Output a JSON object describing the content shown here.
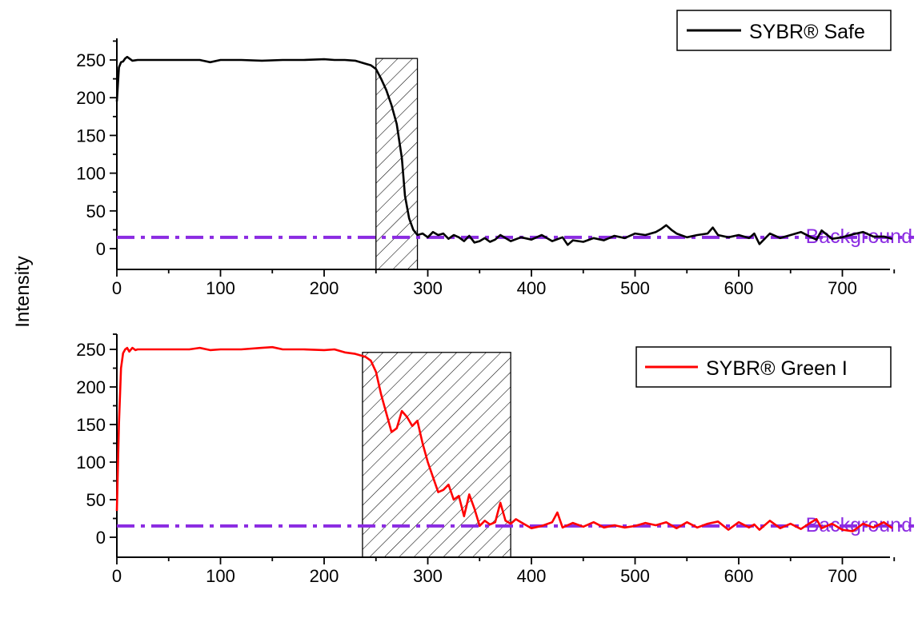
{
  "ylabel": "Intensity",
  "chart_data": [
    {
      "type": "line",
      "series": [
        {
          "name": "SYBR® Safe",
          "color": "#000000",
          "x": [
            0,
            2,
            4,
            6,
            8,
            10,
            12,
            15,
            20,
            30,
            40,
            60,
            80,
            90,
            100,
            120,
            140,
            160,
            180,
            200,
            210,
            220,
            230,
            240,
            245,
            250,
            255,
            260,
            265,
            270,
            275,
            278,
            282,
            286,
            290,
            295,
            300,
            305,
            310,
            315,
            320,
            325,
            330,
            335,
            340,
            345,
            350,
            355,
            360,
            365,
            370,
            375,
            380,
            390,
            400,
            410,
            420,
            430,
            435,
            440,
            450,
            460,
            470,
            480,
            490,
            500,
            510,
            520,
            525,
            530,
            535,
            540,
            550,
            560,
            570,
            575,
            580,
            590,
            600,
            610,
            615,
            620,
            630,
            640,
            650,
            660,
            670,
            675,
            680,
            690,
            700,
            710,
            720,
            730,
            740,
            748
          ],
          "y": [
            195,
            240,
            247,
            248,
            252,
            254,
            252,
            249,
            250,
            250,
            250,
            250,
            250,
            247,
            250,
            250,
            249,
            250,
            250,
            251,
            250,
            250,
            249,
            245,
            243,
            238,
            225,
            210,
            190,
            165,
            120,
            70,
            40,
            25,
            18,
            20,
            15,
            22,
            18,
            20,
            13,
            18,
            15,
            10,
            17,
            8,
            10,
            14,
            9,
            12,
            18,
            14,
            10,
            15,
            12,
            18,
            10,
            15,
            5,
            11,
            9,
            14,
            11,
            17,
            14,
            20,
            18,
            22,
            26,
            31,
            25,
            20,
            15,
            18,
            20,
            28,
            18,
            15,
            18,
            14,
            20,
            6,
            20,
            14,
            18,
            22,
            15,
            12,
            24,
            13,
            15,
            19,
            22,
            16,
            16,
            13
          ]
        }
      ],
      "background_level": 15,
      "background_label": "Background",
      "background_color": "#8B2BE2",
      "shaded_region": [
        250,
        290
      ],
      "shaded_top": 252,
      "xlim": [
        0,
        750
      ],
      "ylim": [
        -25,
        275
      ],
      "xticks": [
        0,
        100,
        200,
        300,
        400,
        500,
        600,
        700
      ],
      "yticks": [
        0,
        50,
        100,
        150,
        200,
        250
      ],
      "legend_position": "top-right"
    },
    {
      "type": "line",
      "series": [
        {
          "name": "SYBR® Green I",
          "color": "#ff0000",
          "x": [
            0,
            2,
            4,
            6,
            8,
            10,
            12,
            15,
            18,
            20,
            30,
            50,
            70,
            80,
            90,
            100,
            120,
            140,
            150,
            160,
            180,
            200,
            210,
            220,
            230,
            240,
            245,
            250,
            255,
            260,
            265,
            270,
            275,
            280,
            285,
            290,
            295,
            300,
            305,
            310,
            315,
            320,
            325,
            330,
            335,
            340,
            345,
            350,
            355,
            360,
            365,
            370,
            375,
            380,
            385,
            390,
            400,
            410,
            420,
            425,
            430,
            440,
            450,
            460,
            470,
            480,
            490,
            500,
            510,
            520,
            530,
            540,
            550,
            560,
            570,
            580,
            590,
            600,
            610,
            615,
            620,
            630,
            640,
            650,
            660,
            670,
            675,
            680,
            690,
            700,
            710,
            720,
            730,
            740,
            748
          ],
          "y": [
            35,
            150,
            225,
            245,
            250,
            252,
            247,
            252,
            249,
            250,
            250,
            250,
            250,
            252,
            249,
            250,
            250,
            252,
            253,
            250,
            250,
            249,
            250,
            246,
            244,
            240,
            235,
            220,
            190,
            165,
            140,
            145,
            168,
            160,
            148,
            155,
            125,
            100,
            80,
            60,
            63,
            70,
            50,
            55,
            28,
            57,
            38,
            15,
            22,
            17,
            20,
            46,
            22,
            18,
            24,
            20,
            12,
            15,
            20,
            33,
            13,
            19,
            14,
            20,
            13,
            16,
            13,
            15,
            19,
            16,
            20,
            12,
            20,
            13,
            18,
            21,
            10,
            20,
            13,
            17,
            10,
            22,
            12,
            18,
            11,
            20,
            24,
            12,
            18,
            10,
            8,
            18,
            13,
            20,
            12
          ]
        }
      ],
      "background_level": 15,
      "background_label": "Background",
      "background_color": "#8B2BE2",
      "shaded_region": [
        237,
        380
      ],
      "shaded_top": 246,
      "xlim": [
        0,
        750
      ],
      "ylim": [
        -25,
        262
      ],
      "xticks": [
        0,
        100,
        200,
        300,
        400,
        500,
        600,
        700
      ],
      "yticks": [
        0,
        50,
        100,
        150,
        200,
        250
      ],
      "legend_position": "top-right"
    }
  ]
}
